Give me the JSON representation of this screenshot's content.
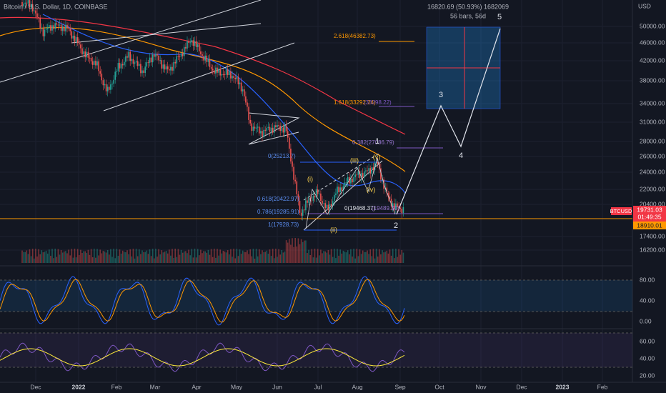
{
  "header": {
    "title": "Bitcoin / U.S. Dollar, 1D, COINBASE"
  },
  "measure": {
    "change": "16820.69 (50.93%) 1682069",
    "span": "56 bars, 56d"
  },
  "price_axis": {
    "unit": "USD",
    "labels": [
      "50000.00",
      "46000.00",
      "42000.00",
      "38000.00",
      "34000.00",
      "31000.00",
      "28000.00",
      "26000.00",
      "24000.00",
      "22000.00",
      "20400.00",
      "17400.00",
      "16200.00"
    ]
  },
  "price_tags": {
    "symbol": "BTCUSD",
    "last": "19731.03",
    "countdown": "01:49:35",
    "level": "18910.01"
  },
  "stoch_axis": [
    "80.00",
    "40.00",
    "0.00"
  ],
  "rsi_axis": [
    "60.00",
    "40.00",
    "20.00"
  ],
  "date_axis": [
    "Dec",
    "2022",
    "Feb",
    "Mar",
    "Apr",
    "May",
    "Jun",
    "Jul",
    "Aug",
    "Sep",
    "Oct",
    "Nov",
    "Dec",
    "2023",
    "Feb"
  ],
  "fib_labels": [
    "2.618(46382.73)",
    "1.618(33292.24)",
    "(33298.22)",
    "0.382(27086.79)",
    "0(25213.7)",
    "0.618(20422.97)",
    "0.786(19285.91)",
    "0(19468.37)",
    "(19489.30)",
    "1(17928.73)"
  ],
  "waves": [
    "1",
    "2",
    "3",
    "4",
    "5",
    "(i)",
    "(ii)",
    "(iii)",
    "(iv)",
    "(v)"
  ]
}
